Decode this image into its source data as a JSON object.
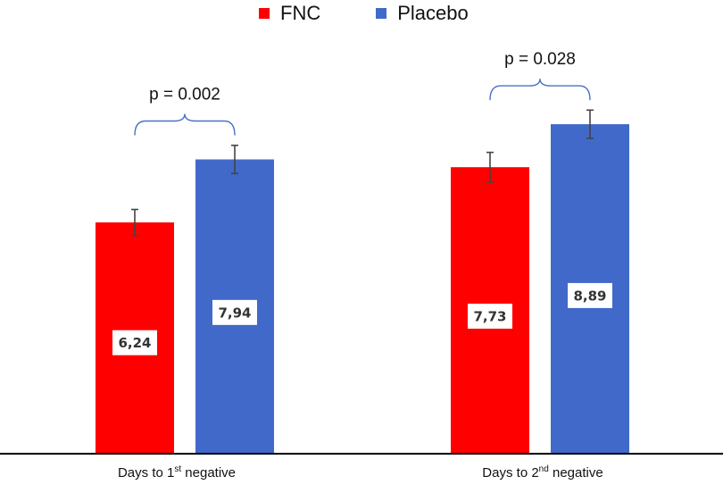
{
  "chart_data": {
    "type": "bar",
    "categories": [
      {
        "prefix": "Days to 1",
        "sup": "st",
        "suffix": " negative"
      },
      {
        "prefix": "Days to 2",
        "sup": "nd",
        "suffix": " negative"
      }
    ],
    "series": [
      {
        "name": "FNC",
        "color": "#ff0000",
        "values": [
          6.24,
          7.73
        ],
        "labels": [
          "6,24",
          "7,73"
        ],
        "errors": [
          0.35,
          0.4
        ]
      },
      {
        "name": "Placebo",
        "color": "#4169c9",
        "values": [
          7.94,
          8.89
        ],
        "labels": [
          "7,94",
          "8,89"
        ],
        "errors": [
          0.38,
          0.38
        ]
      }
    ],
    "comparisons": [
      {
        "category": 0,
        "text": "p = 0.002"
      },
      {
        "category": 1,
        "text": "p = 0.028"
      }
    ],
    "ylim": [
      0,
      12
    ],
    "grid": false,
    "legend": "top-center"
  }
}
